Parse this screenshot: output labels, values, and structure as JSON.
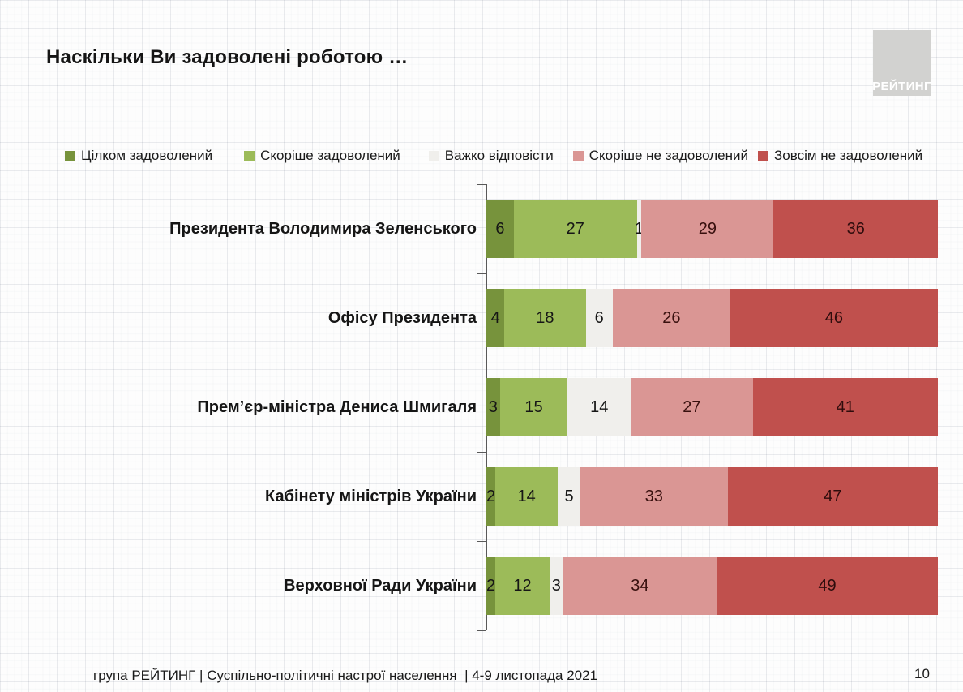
{
  "page": {
    "title": "Наскільки Ви задоволені роботою …",
    "logo_text": "РЕЙТИНГ",
    "footer": "група РЕЙТИНГ | Суспільно-політичні настрої населення  | 4-9 листопада 2021",
    "page_number": "10"
  },
  "colors": {
    "satisfied_full": "#77933C",
    "satisfied_rather": "#9CBB59",
    "hard_to_say": "#F0EFEC",
    "unsatisfied_rather": "#DA9694",
    "unsatisfied_full": "#C0504D",
    "axis": "#595959",
    "logo_bg": "#d2d2d0"
  },
  "chart_data": {
    "type": "bar",
    "subtype": "horizontal-100pct-stacked",
    "title": "Наскільки Ви задоволені роботою …",
    "legend_position": "top",
    "grid": false,
    "value_labels": true,
    "xlim": [
      0,
      100
    ],
    "categories": [
      "Президента Володимира Зеленського",
      "Офісу Президента",
      "Прем’єр-міністра Дениса Шмигаля",
      "Кабінету міністрів України",
      "Верховної Ради України"
    ],
    "series": [
      {
        "name": "Цілком задоволений",
        "color": "#77933C",
        "label_color": "#161616",
        "values": [
          6,
          4,
          3,
          2,
          2
        ]
      },
      {
        "name": "Скоріше задоволений",
        "color": "#9CBB59",
        "label_color": "#161616",
        "values": [
          27,
          18,
          15,
          14,
          12
        ]
      },
      {
        "name": "Важко відповісти",
        "color": "#F0EFEC",
        "label_color": "#161616",
        "values": [
          1,
          6,
          14,
          5,
          3
        ]
      },
      {
        "name": "Скоріше не задоволений",
        "color": "#DA9694",
        "label_color": "#38100e",
        "values": [
          29,
          26,
          27,
          33,
          34
        ]
      },
      {
        "name": "Зовсім не задоволений",
        "color": "#C0504D",
        "label_color": "#2e0c0c",
        "values": [
          36,
          46,
          41,
          47,
          49
        ]
      }
    ]
  },
  "layout_hints": {
    "legend_item_gaps": [
      0,
      39,
      35,
      24,
      12
    ]
  }
}
